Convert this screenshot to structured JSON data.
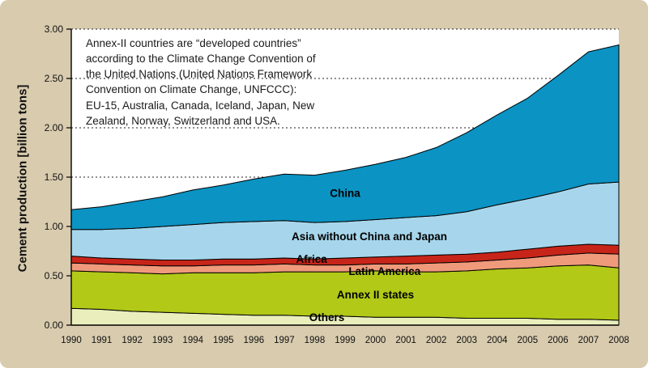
{
  "chart_data": {
    "type": "area",
    "stacked": true,
    "title": "",
    "xlabel": "",
    "ylabel": "Cement production [billion tons]",
    "ylim": [
      0,
      3
    ],
    "y_ticks": [
      {
        "label": "0.00",
        "value": 0
      },
      {
        "label": "0.50",
        "value": 0.5
      },
      {
        "label": "1.00",
        "value": 1
      },
      {
        "label": "1.50",
        "value": 1.5
      },
      {
        "label": "2.00",
        "value": 2
      },
      {
        "label": "2.50",
        "value": 2.5
      },
      {
        "label": "3.00",
        "value": 3
      }
    ],
    "grid": "dotted-horizontal",
    "legend_position": "labels-inside-areas",
    "years": [
      1990,
      1991,
      1992,
      1993,
      1994,
      1995,
      1996,
      1997,
      1998,
      1999,
      2000,
      2001,
      2002,
      2003,
      2004,
      2005,
      2006,
      2007,
      2008
    ],
    "series": [
      {
        "name": "Others",
        "color": "#e9eebc",
        "values": [
          0.17,
          0.16,
          0.14,
          0.13,
          0.12,
          0.11,
          0.1,
          0.1,
          0.09,
          0.09,
          0.08,
          0.08,
          0.08,
          0.07,
          0.07,
          0.07,
          0.06,
          0.06,
          0.05
        ],
        "label_x": 1998.4,
        "label_y": 0.04
      },
      {
        "name": "Annex II states",
        "color": "#b2c917",
        "values": [
          0.38,
          0.38,
          0.39,
          0.39,
          0.41,
          0.42,
          0.43,
          0.44,
          0.45,
          0.45,
          0.47,
          0.46,
          0.46,
          0.48,
          0.5,
          0.51,
          0.54,
          0.55,
          0.53
        ],
        "label_x": 2000.0,
        "label_y": 0.27
      },
      {
        "name": "Latin America",
        "color": "#f09a7c",
        "values": [
          0.08,
          0.08,
          0.08,
          0.08,
          0.07,
          0.08,
          0.08,
          0.08,
          0.07,
          0.07,
          0.07,
          0.08,
          0.09,
          0.09,
          0.09,
          0.1,
          0.11,
          0.12,
          0.14
        ],
        "label_x": 2000.3,
        "label_y": 0.51
      },
      {
        "name": "Africa",
        "color": "#c8251a",
        "values": [
          0.07,
          0.06,
          0.06,
          0.06,
          0.06,
          0.06,
          0.06,
          0.06,
          0.06,
          0.07,
          0.07,
          0.08,
          0.08,
          0.08,
          0.08,
          0.09,
          0.09,
          0.09,
          0.09
        ],
        "label_x": 1997.9,
        "label_y": 0.63
      },
      {
        "name": "Asia without China and Japan",
        "color": "#a7d6ec",
        "values": [
          0.27,
          0.29,
          0.31,
          0.34,
          0.36,
          0.37,
          0.38,
          0.38,
          0.37,
          0.37,
          0.38,
          0.39,
          0.4,
          0.43,
          0.48,
          0.51,
          0.55,
          0.61,
          0.64
        ],
        "label_x": 1999.8,
        "label_y": 0.86
      },
      {
        "name": "China",
        "color": "#0b93c3",
        "values": [
          0.2,
          0.23,
          0.27,
          0.3,
          0.35,
          0.38,
          0.43,
          0.47,
          0.48,
          0.52,
          0.56,
          0.61,
          0.69,
          0.8,
          0.91,
          1.02,
          1.18,
          1.34,
          1.39
        ],
        "label_x": 1999.0,
        "label_y": 1.3
      }
    ],
    "annotation": "Annex-II countries are “developed countries”\naccording to the Climate Change Convention of\nthe United Nations (United Nations Framework\nConvention on Climate Change, UNFCCC):\nEU-15, Australia, Canada, Iceland, Japan, New\nZealand, Norway, Switzerland and USA."
  }
}
